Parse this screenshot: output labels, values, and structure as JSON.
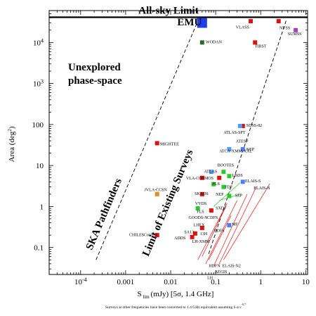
{
  "chart_data": {
    "type": "scatter",
    "title": "",
    "xlabel": "S lim (mJy) [5σ, 1.4 GHz]",
    "xlabel_parts": {
      "main": "S",
      "sub": "lim",
      "rest": "(mJy) [5σ, 1.4 GHz]"
    },
    "ylabel": "Area (deg²)",
    "ylabel_parts": {
      "main": "Area (deg",
      "sup": "2",
      "close": ")"
    },
    "x_scale": "log",
    "y_scale": "log",
    "xlim": [
      2e-05,
      11
    ],
    "ylim": [
      0.022,
      60000
    ],
    "x_ticks": [
      {
        "value": 0.0001,
        "label": "10",
        "sup": "-4"
      },
      {
        "value": 0.001,
        "label": "0.001"
      },
      {
        "value": 0.01,
        "label": "0.01"
      },
      {
        "value": 0.1,
        "label": "0.1"
      },
      {
        "value": 1,
        "label": "1"
      },
      {
        "value": 10,
        "label": "10"
      }
    ],
    "y_ticks": [
      {
        "value": 0.1,
        "label": "0.1"
      },
      {
        "value": 1,
        "label": "1"
      },
      {
        "value": 10,
        "label": "10"
      },
      {
        "value": 100,
        "label": "100"
      },
      {
        "value": 1000,
        "label": "10",
        "sup": "3"
      },
      {
        "value": 10000,
        "label": "10",
        "sup": "4"
      }
    ],
    "all_sky_limit": {
      "area": 41253,
      "label": "All-sky Limit"
    },
    "region_labels": {
      "unexplored_line1": "Unexplored",
      "unexplored_line2": "phase-space",
      "limit_existing": "Limit of Existing Surveys",
      "ska_pathfinders": "SKA Pathfinders"
    },
    "footnote": "Surveys at other frequencies have been converted to 1.4 GHz equivalent assuming S α ν",
    "footnote_sup": "-0.7",
    "points": [
      {
        "name": "EMU",
        "x": 0.05,
        "y": 30000,
        "color": "#1f3fe8",
        "size": "large"
      },
      {
        "name": "WODAN",
        "x": 0.05,
        "y": 10000,
        "color": "#2a6a2a"
      },
      {
        "name": "VLASS",
        "x": 0.6,
        "y": 33000,
        "color": "#e01010"
      },
      {
        "name": "NVSS",
        "x": 2.5,
        "y": 33000,
        "color": "#e01010"
      },
      {
        "name": "SUMSS",
        "x": 6,
        "y": 20000,
        "color": "#a040c0"
      },
      {
        "name": "FIRST",
        "x": 0.75,
        "y": 10000,
        "color": "#e01010"
      },
      {
        "name": "SDSS-82",
        "x": 0.4,
        "y": 92,
        "color": "#e01010"
      },
      {
        "name": "ATLAS-SPT",
        "x": 0.35,
        "y": 92,
        "color": "#4aa0ff"
      },
      {
        "name": "MIGHTEE",
        "x": 0.005,
        "y": 35,
        "color": "#e01010"
      },
      {
        "name": "NEP",
        "x": 0.4,
        "y": 25,
        "color": "#4a80ff"
      },
      {
        "name": "ATCA-XMM-XXL",
        "x": 0.2,
        "y": 25,
        "color": "#4aa0ff"
      },
      {
        "name": "ATLAS",
        "x": 0.08,
        "y": 7,
        "color": "#4aa0ff"
      },
      {
        "name": "BOOTES",
        "x": 0.15,
        "y": 7,
        "color": "#2ac82a"
      },
      {
        "name": "LBDS",
        "x": 0.2,
        "y": 5.5,
        "color": "#2ac82a"
      },
      {
        "name": "VLA-COSMOS",
        "x": 0.05,
        "y": 5,
        "color": "#e01010"
      },
      {
        "name": "SKADS",
        "x": 0.12,
        "y": 5,
        "color": "#e01010"
      },
      {
        "name": "FLS",
        "x": 0.09,
        "y": 3.5,
        "color": "#2ac82a"
      },
      {
        "name": "FDF",
        "x": 0.15,
        "y": 3,
        "color": "#2ac82a"
      },
      {
        "name": "ELAIS-S",
        "x": 0.4,
        "y": 4,
        "color": "#4a80ff"
      },
      {
        "name": "JVLA-CCSN",
        "x": 0.005,
        "y": 2,
        "color": "#e88a20"
      },
      {
        "name": "NEP-2",
        "x": 0.05,
        "y": 2,
        "color": "#e01010"
      },
      {
        "name": "SEP",
        "x": 0.2,
        "y": 1.8,
        "color": "#2ac82a"
      },
      {
        "name": "VVDS",
        "x": 0.04,
        "y": 0.9,
        "color": "#2ac82a"
      },
      {
        "name": "SXDF",
        "x": 0.08,
        "y": 0.8,
        "color": "#e01010"
      },
      {
        "name": "LH-13H",
        "x": 0.05,
        "y": 0.3,
        "color": "#e01010"
      },
      {
        "name": "LH-SKA13",
        "x": 0.035,
        "y": 0.22,
        "color": "#e01010"
      },
      {
        "name": "ADDS",
        "x": 0.03,
        "y": 0.18,
        "color": "#e01010"
      },
      {
        "name": "MF",
        "x": 0.2,
        "y": 0.35,
        "color": "#4a80ff"
      },
      {
        "name": "CHILES",
        "x": 0.005,
        "y": 0.2,
        "color": "#e01010"
      }
    ],
    "point_labels": [
      {
        "text": "EMU",
        "x": 0.014,
        "y": 26000,
        "style": "emu"
      },
      {
        "text": "WODAN",
        "x": 0.06,
        "y": 9500
      },
      {
        "text": "VLASS",
        "x": 0.28,
        "y": 22000
      },
      {
        "text": "NVSS",
        "x": 2.6,
        "y": 21000
      },
      {
        "text": "SUMSS",
        "x": 4.0,
        "y": 15000
      },
      {
        "text": "FIRST",
        "x": 0.75,
        "y": 7500
      },
      {
        "text": "SDSS-82",
        "x": 0.48,
        "y": 88
      },
      {
        "text": "ATLAS-SPT",
        "x": 0.15,
        "y": 60
      },
      {
        "text": "ATESP",
        "x": 0.28,
        "y": 36
      },
      {
        "text": "MIGHTEE",
        "x": 0.0058,
        "y": 31
      },
      {
        "text": "ATCA-XMM-XXL",
        "x": 0.12,
        "y": 21
      },
      {
        "text": "NEP",
        "x": 0.48,
        "y": 23
      },
      {
        "text": "BOOTES",
        "x": 0.11,
        "y": 9.5
      },
      {
        "text": "ATLAS",
        "x": 0.055,
        "y": 6.6
      },
      {
        "text": "LBDS",
        "x": 0.23,
        "y": 5.3
      },
      {
        "text": "VLA-COSMOS",
        "x": 0.022,
        "y": 4.6
      },
      {
        "text": "ELAIS-S",
        "x": 0.45,
        "y": 3.9
      },
      {
        "text": "ELAIS-N",
        "x": 0.7,
        "y": 2.6
      },
      {
        "text": "FLS",
        "x": 0.085,
        "y": 3.3
      },
      {
        "text": "FDF",
        "x": 0.16,
        "y": 2.8
      },
      {
        "text": "JVLA-CCSN",
        "x": 0.0026,
        "y": 2.4
      },
      {
        "text": "SKADS",
        "x": 0.034,
        "y": 1.9
      },
      {
        "text": "NEP",
        "x": 0.1,
        "y": 1.85
      },
      {
        "text": "SEP",
        "x": 0.27,
        "y": 1.75
      },
      {
        "text": "VVDS",
        "x": 0.035,
        "y": 1.1
      },
      {
        "text": "SXDF",
        "x": 0.1,
        "y": 0.85
      },
      {
        "text": "FLS",
        "x": 0.038,
        "y": 0.7
      },
      {
        "text": "GOODS-N",
        "x": 0.025,
        "y": 0.5
      },
      {
        "text": "CDFS",
        "x": 0.065,
        "y": 0.5
      },
      {
        "text": "LHEX",
        "x": 0.032,
        "y": 0.33
      },
      {
        "text": "MF",
        "x": 0.23,
        "y": 0.34
      },
      {
        "text": "HDFS",
        "x": 0.09,
        "y": 0.24
      },
      {
        "text": "SA13",
        "x": 0.02,
        "y": 0.22
      },
      {
        "text": "13H",
        "x": 0.045,
        "y": 0.2
      },
      {
        "text": "CHILESConPol",
        "x": 0.0012,
        "y": 0.19
      },
      {
        "text": "ADDS",
        "x": 0.012,
        "y": 0.16
      },
      {
        "text": "LH-XMM",
        "x": 0.03,
        "y": 0.13
      },
      {
        "text": "HDFN",
        "x": 0.07,
        "y": 0.033
      },
      {
        "text": "ELAIS-N2",
        "x": 0.14,
        "y": 0.033
      },
      {
        "text": "AEGIS",
        "x": 0.095,
        "y": 0.024
      },
      {
        "text": "LH",
        "x": 0.065,
        "y": 0.017
      }
    ],
    "diagonal_lines": [
      {
        "name": "ska-pathfinders-line",
        "points": [
          [
            0.00022,
            0.05
          ],
          [
            0.041,
            35000
          ]
        ]
      },
      {
        "name": "existing-limit-line",
        "points": [
          [
            0.07,
            0.07
          ],
          [
            3.7,
            35000
          ]
        ]
      }
    ]
  }
}
